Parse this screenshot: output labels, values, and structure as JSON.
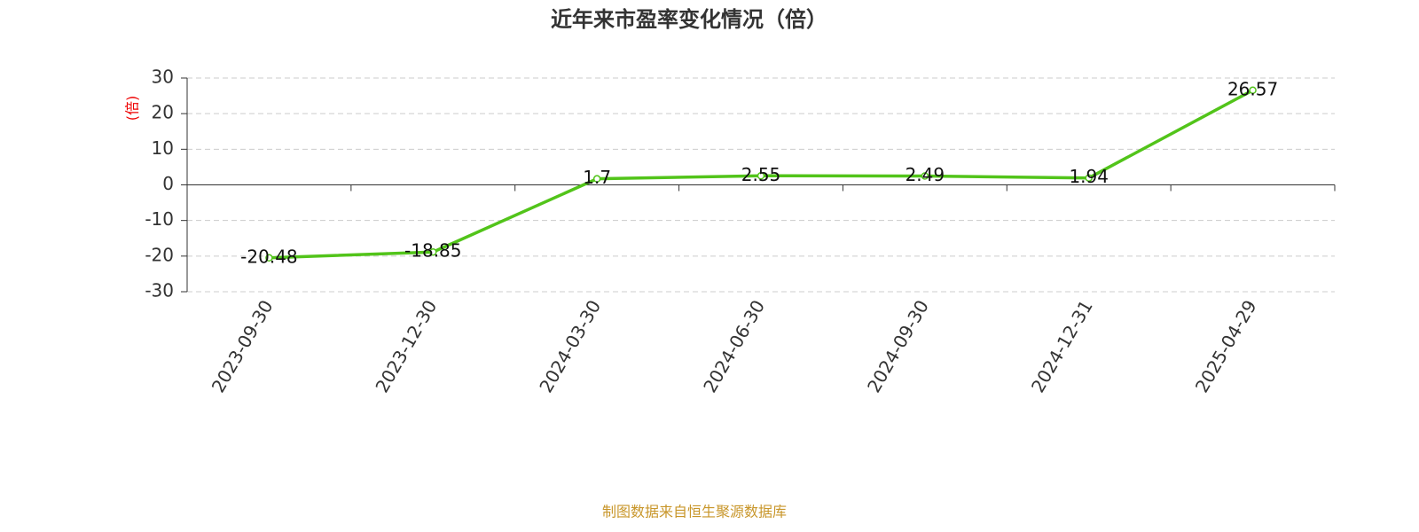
{
  "chart_data": {
    "type": "line",
    "title": "近年来市盈率变化情况（倍）",
    "y_label": "(倍)",
    "footer": "制图数据来自恒生聚源数据库",
    "categories": [
      "2023-09-30",
      "2023-12-30",
      "2024-03-30",
      "2024-06-30",
      "2024-09-30",
      "2024-12-31",
      "2025-04-29"
    ],
    "series": [
      {
        "name": "市盈率",
        "color": "#52c41a",
        "values": [
          -20.48,
          -18.85,
          1.7,
          2.55,
          2.49,
          1.94,
          26.57
        ]
      }
    ],
    "ylim": [
      -30,
      30
    ],
    "yticks": [
      -30,
      -20,
      -10,
      0,
      10,
      20,
      30
    ],
    "grid": true
  }
}
